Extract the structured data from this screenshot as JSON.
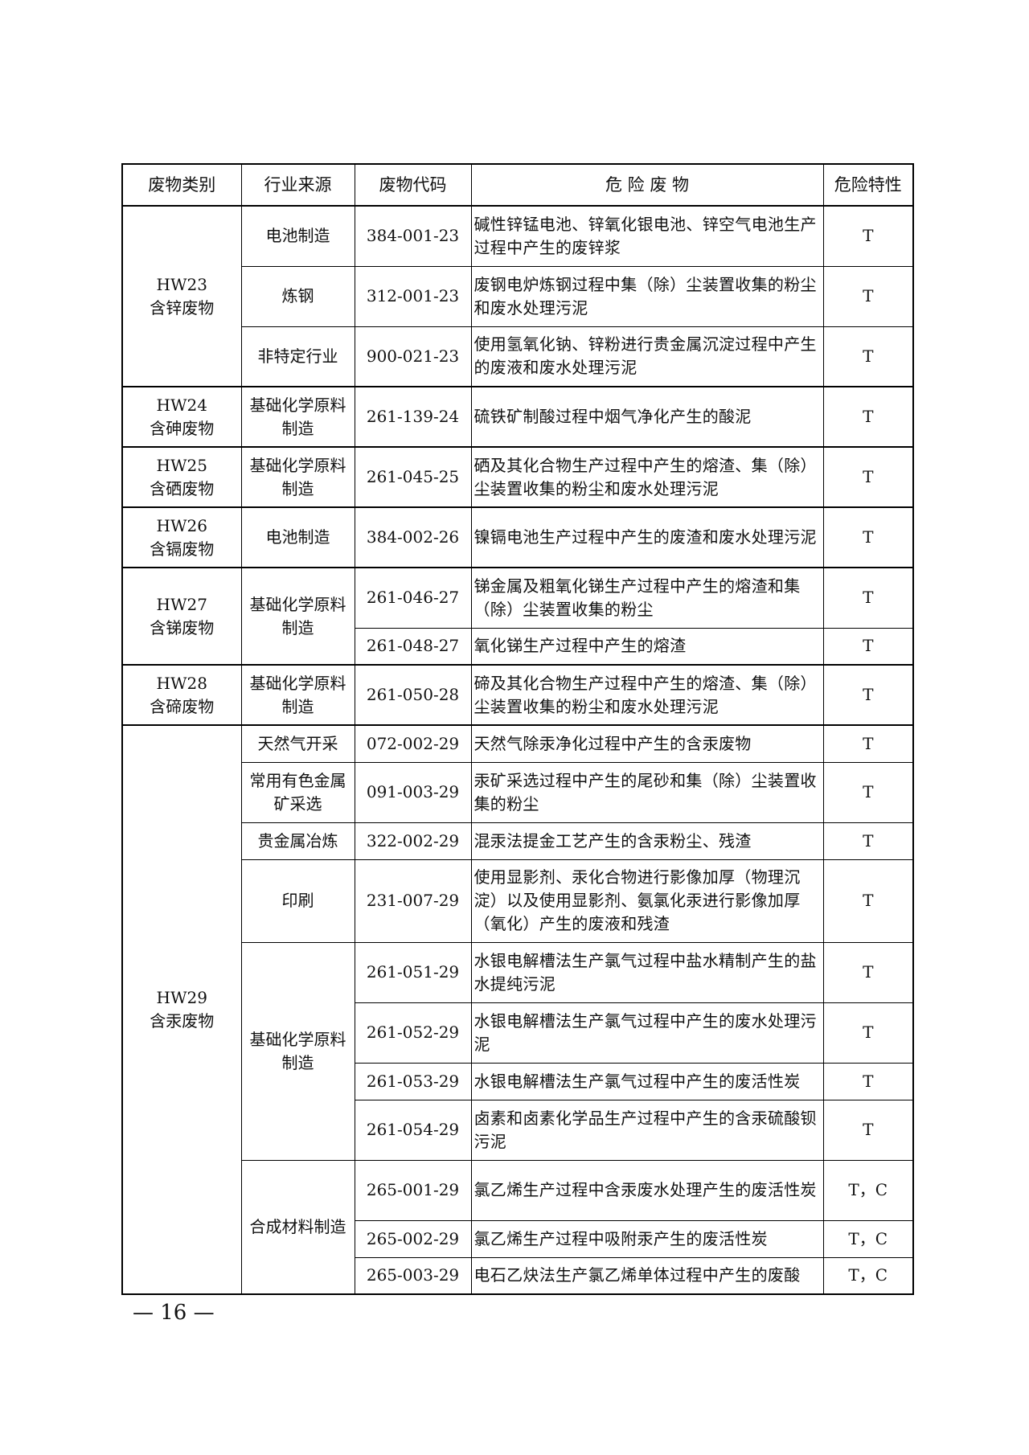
{
  "header": {
    "category": "废物类别",
    "source": "行业来源",
    "code": "废物代码",
    "waste": "危 险 废 物",
    "hazard": "危险特性"
  },
  "categories": [
    {
      "code": "HW23",
      "name": "含锌废物",
      "sources": [
        {
          "name": "电池制造",
          "items": [
            {
              "code": "384-001-23",
              "waste": "碱性锌锰电池、锌氧化银电池、锌空气电池生产过程中产生的废锌浆",
              "hazard": "T",
              "lines": 2
            }
          ]
        },
        {
          "name": "炼钢",
          "items": [
            {
              "code": "312-001-23",
              "waste": "废钢电炉炼钢过程中集（除）尘装置收集的粉尘和废水处理污泥",
              "hazard": "T",
              "lines": 2
            }
          ]
        },
        {
          "name": "非特定行业",
          "items": [
            {
              "code": "900-021-23",
              "waste": "使用氢氧化钠、锌粉进行贵金属沉淀过程中产生的废液和废水处理污泥",
              "hazard": "T",
              "lines": 2
            }
          ]
        }
      ]
    },
    {
      "code": "HW24",
      "name": "含砷废物",
      "sources": [
        {
          "name": "基础化学原料制造",
          "items": [
            {
              "code": "261-139-24",
              "waste": "硫铁矿制酸过程中烟气净化产生的酸泥",
              "hazard": "T",
              "lines": 2
            }
          ]
        }
      ]
    },
    {
      "code": "HW25",
      "name": "含硒废物",
      "sources": [
        {
          "name": "基础化学原料制造",
          "items": [
            {
              "code": "261-045-25",
              "waste": "硒及其化合物生产过程中产生的熔渣、集（除）尘装置收集的粉尘和废水处理污泥",
              "hazard": "T",
              "lines": 2
            }
          ]
        }
      ]
    },
    {
      "code": "HW26",
      "name": "含镉废物",
      "sources": [
        {
          "name": "电池制造",
          "items": [
            {
              "code": "384-002-26",
              "waste": "镍镉电池生产过程中产生的废渣和废水处理污泥",
              "hazard": "T",
              "lines": 2
            }
          ]
        }
      ]
    },
    {
      "code": "HW27",
      "name": "含锑废物",
      "sources": [
        {
          "name": "基础化学原料制造",
          "items": [
            {
              "code": "261-046-27",
              "waste": "锑金属及粗氧化锑生产过程中产生的熔渣和集（除）尘装置收集的粉尘",
              "hazard": "T",
              "lines": 2
            },
            {
              "code": "261-048-27",
              "waste": "氧化锑生产过程中产生的熔渣",
              "hazard": "T",
              "lines": 1
            }
          ]
        }
      ]
    },
    {
      "code": "HW28",
      "name": "含碲废物",
      "sources": [
        {
          "name": "基础化学原料制造",
          "items": [
            {
              "code": "261-050-28",
              "waste": "碲及其化合物生产过程中产生的熔渣、集（除）尘装置收集的粉尘和废水处理污泥",
              "hazard": "T",
              "lines": 2
            }
          ]
        }
      ]
    },
    {
      "code": "HW29",
      "name": "含汞废物",
      "sources": [
        {
          "name": "天然气开采",
          "items": [
            {
              "code": "072-002-29",
              "waste": "天然气除汞净化过程中产生的含汞废物",
              "hazard": "T",
              "lines": 1
            }
          ]
        },
        {
          "name": "常用有色金属矿采选",
          "items": [
            {
              "code": "091-003-29",
              "waste": "汞矿采选过程中产生的尾砂和集（除）尘装置收集的粉尘",
              "hazard": "T",
              "lines": 2
            }
          ]
        },
        {
          "name": "贵金属冶炼",
          "items": [
            {
              "code": "322-002-29",
              "waste": "混汞法提金工艺产生的含汞粉尘、残渣",
              "hazard": "T",
              "lines": 1
            }
          ]
        },
        {
          "name": "印刷",
          "items": [
            {
              "code": "231-007-29",
              "waste": "使用显影剂、汞化合物进行影像加厚（物理沉淀）以及使用显影剂、氨氯化汞进行影像加厚（氧化）产生的废液和残渣",
              "hazard": "T",
              "lines": 3
            }
          ]
        },
        {
          "name": "基础化学原料制造",
          "items": [
            {
              "code": "261-051-29",
              "waste": "水银电解槽法生产氯气过程中盐水精制产生的盐水提纯污泥",
              "hazard": "T",
              "lines": 2
            },
            {
              "code": "261-052-29",
              "waste": "水银电解槽法生产氯气过程中产生的废水处理污泥",
              "hazard": "T",
              "lines": 2
            },
            {
              "code": "261-053-29",
              "waste": "水银电解槽法生产氯气过程中产生的废活性炭",
              "hazard": "T",
              "lines": 1
            },
            {
              "code": "261-054-29",
              "waste": "卤素和卤素化学品生产过程中产生的含汞硫酸钡污泥",
              "hazard": "T",
              "lines": 2
            }
          ]
        },
        {
          "name": "合成材料制造",
          "items": [
            {
              "code": "265-001-29",
              "waste": "氯乙烯生产过程中含汞废水处理产生的废活性炭",
              "hazard": "T，C",
              "lines": 2
            },
            {
              "code": "265-002-29",
              "waste": "氯乙烯生产过程中吸附汞产生的废活性炭",
              "hazard": "T，C",
              "lines": 1
            },
            {
              "code": "265-003-29",
              "waste": "电石乙炔法生产氯乙烯单体过程中产生的废酸",
              "hazard": "T，C",
              "lines": 1
            }
          ]
        }
      ]
    }
  ],
  "footer": {
    "page_number": "— 16 —"
  }
}
